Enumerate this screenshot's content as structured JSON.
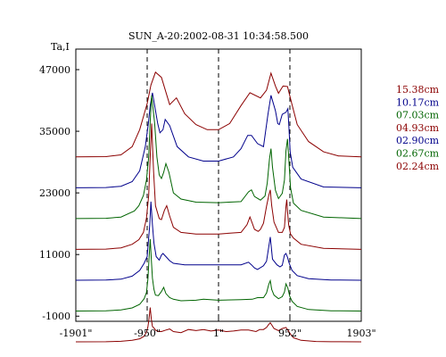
{
  "chart_data": {
    "type": "line",
    "title": "SUN_A-20:2002-08-31 10:34:58.500",
    "ylabel": "Ta,I",
    "xlabel": "",
    "x_ticks": [
      "-1901\"",
      "-950\"",
      "1\"",
      "952\"",
      "1903\""
    ],
    "x_tick_values": [
      -1901,
      -950,
      1,
      952,
      1903
    ],
    "xlim": [
      -1901,
      1903
    ],
    "y_ticks": [
      "47000",
      "35000",
      "23000",
      "11000",
      "-1000"
    ],
    "y_tick_values": [
      47000,
      35000,
      23000,
      11000,
      -1000
    ],
    "ylim": [
      -2000,
      51000
    ],
    "dashed_vlines": [
      -950,
      1,
      952
    ],
    "grid": false,
    "legend_position": "right",
    "series": [
      {
        "name": "15.38cm",
        "color": "#8B0000",
        "offset": 30000,
        "x": [
          -1901,
          -1500,
          -1300,
          -1150,
          -1050,
          -950,
          -900,
          -840,
          -760,
          -650,
          -560,
          -450,
          -300,
          -150,
          1,
          150,
          300,
          420,
          560,
          640,
          700,
          760,
          800,
          860,
          920,
          980,
          1050,
          1200,
          1400,
          1600,
          1903
        ],
        "y": [
          0,
          60,
          400,
          2000,
          5300,
          10400,
          14000,
          16500,
          15500,
          10200,
          11500,
          8400,
          6300,
          5300,
          5300,
          6500,
          10000,
          12500,
          11500,
          13000,
          16300,
          13800,
          12400,
          13800,
          13700,
          10200,
          6300,
          3000,
          1000,
          200,
          0
        ]
      },
      {
        "name": "10.17cm",
        "color": "#00008B",
        "offset": 24000,
        "x": [
          -1901,
          -1500,
          -1300,
          -1150,
          -1050,
          -975,
          -935,
          -910,
          -880,
          -810,
          -780,
          -740,
          -710,
          -650,
          -550,
          -400,
          -200,
          1,
          200,
          300,
          390,
          440,
          520,
          600,
          660,
          700,
          760,
          790,
          810,
          850,
          900,
          925,
          940,
          955,
          990,
          1100,
          1400,
          1903
        ],
        "y": [
          0,
          50,
          300,
          1200,
          3300,
          8000,
          12500,
          16000,
          18500,
          12500,
          10700,
          11300,
          13300,
          12100,
          8000,
          6000,
          5200,
          5200,
          6000,
          7600,
          10200,
          10200,
          8600,
          8000,
          14300,
          18000,
          15000,
          12500,
          12300,
          14300,
          14700,
          15400,
          11500,
          7000,
          4000,
          1700,
          150,
          0
        ]
      },
      {
        "name": "07.03cm",
        "color": "#006400",
        "offset": 18000,
        "x": [
          -1901,
          -1500,
          -1300,
          -1120,
          -1060,
          -1000,
          -960,
          -930,
          -910,
          -890,
          -850,
          -820,
          -790,
          -760,
          -730,
          -700,
          -660,
          -600,
          -500,
          -300,
          1,
          300,
          400,
          440,
          480,
          560,
          620,
          650,
          680,
          700,
          720,
          760,
          800,
          850,
          880,
          900,
          920,
          940,
          960,
          1000,
          1100,
          1400,
          1903
        ],
        "y": [
          0,
          50,
          300,
          1500,
          2500,
          4500,
          7500,
          12000,
          19000,
          24000,
          18500,
          12000,
          8500,
          7800,
          9000,
          10700,
          9000,
          5000,
          3800,
          3200,
          3100,
          3300,
          5200,
          5600,
          4300,
          3600,
          4400,
          6900,
          11600,
          13600,
          10000,
          5500,
          3900,
          4900,
          7500,
          13200,
          15500,
          11000,
          6000,
          3000,
          1600,
          300,
          0
        ]
      },
      {
        "name": "04.93cm",
        "color": "#8B0000",
        "offset": 12000,
        "x": [
          -1901,
          -1500,
          -1300,
          -1150,
          -1060,
          -1000,
          -960,
          -930,
          -910,
          -890,
          -865,
          -840,
          -790,
          -760,
          -720,
          -690,
          -650,
          -600,
          -500,
          -300,
          1,
          300,
          380,
          420,
          450,
          480,
          530,
          560,
          600,
          640,
          670,
          690,
          710,
          740,
          800,
          850,
          880,
          900,
          910,
          920,
          935,
          960,
          1000,
          1100,
          1400,
          1903
        ],
        "y": [
          0,
          50,
          300,
          1000,
          1900,
          3300,
          6100,
          10500,
          18100,
          24500,
          15100,
          8500,
          6000,
          5800,
          7600,
          8500,
          6500,
          4300,
          3300,
          3000,
          3000,
          3300,
          4800,
          6300,
          5100,
          3900,
          3500,
          3900,
          5100,
          8400,
          10500,
          11600,
          8500,
          5300,
          3300,
          3300,
          4300,
          8400,
          9700,
          7500,
          4800,
          3000,
          2200,
          1000,
          200,
          0
        ]
      },
      {
        "name": "02.90cm",
        "color": "#00008B",
        "offset": 6000,
        "x": [
          -1901,
          -1500,
          -1300,
          -1150,
          -1050,
          -990,
          -950,
          -930,
          -915,
          -900,
          -880,
          -860,
          -830,
          -790,
          -760,
          -740,
          -700,
          -650,
          -600,
          -450,
          -200,
          1,
          300,
          400,
          440,
          480,
          520,
          600,
          640,
          670,
          690,
          720,
          780,
          820,
          850,
          880,
          900,
          920,
          940,
          980,
          1050,
          1200,
          1500,
          1903
        ],
        "y": [
          0,
          30,
          200,
          800,
          1900,
          3300,
          4600,
          8300,
          10800,
          15300,
          10800,
          7200,
          4600,
          3900,
          4900,
          5200,
          4600,
          3800,
          3300,
          3000,
          3000,
          3000,
          3000,
          3500,
          3000,
          2400,
          2100,
          2800,
          3700,
          6500,
          8400,
          4100,
          3000,
          2600,
          2900,
          4900,
          5200,
          4500,
          3400,
          1900,
          900,
          300,
          50,
          0
        ]
      },
      {
        "name": "02.67cm",
        "color": "#006400",
        "offset": 0,
        "x": [
          -1901,
          -1500,
          -1300,
          -1150,
          -1050,
          -990,
          -960,
          -940,
          -925,
          -910,
          -895,
          -880,
          -860,
          -840,
          -800,
          -760,
          -730,
          -700,
          -650,
          -600,
          -500,
          -300,
          -200,
          1,
          300,
          450,
          520,
          600,
          640,
          670,
          690,
          710,
          740,
          800,
          850,
          880,
          900,
          925,
          950,
          980,
          1050,
          1200,
          1500,
          1903
        ],
        "y": [
          0,
          30,
          200,
          600,
          1300,
          2400,
          3600,
          6200,
          10200,
          14000,
          10200,
          6400,
          4200,
          3100,
          3000,
          3800,
          4600,
          3400,
          2600,
          2300,
          2000,
          2100,
          2300,
          2100,
          2200,
          2300,
          2600,
          2600,
          3500,
          5200,
          5900,
          4200,
          3100,
          2400,
          2800,
          3700,
          5300,
          4500,
          2900,
          1900,
          900,
          300,
          50,
          0
        ]
      },
      {
        "name": "02.24cm",
        "color": "#8B0000",
        "offset": -6000,
        "x": [
          -1901,
          -1500,
          -1300,
          -1150,
          -1050,
          -990,
          -960,
          -940,
          -925,
          -910,
          -895,
          -880,
          -860,
          -840,
          -800,
          -760,
          -700,
          -650,
          -600,
          -500,
          -400,
          -300,
          -200,
          -100,
          1,
          100,
          200,
          300,
          400,
          500,
          550,
          600,
          640,
          670,
          690,
          710,
          740,
          800,
          850,
          900,
          925,
          960,
          1000,
          1100,
          1300,
          1500,
          1903
        ],
        "y": [
          0,
          20,
          100,
          300,
          600,
          1100,
          1900,
          2900,
          4500,
          6700,
          4500,
          3000,
          2700,
          2300,
          2000,
          2000,
          2300,
          2500,
          2000,
          1800,
          2400,
          2200,
          2400,
          2100,
          2300,
          2000,
          2100,
          2300,
          2300,
          2000,
          2400,
          2400,
          2800,
          3400,
          3700,
          3300,
          2600,
          2200,
          2600,
          2800,
          2300,
          1500,
          800,
          300,
          80,
          20,
          0
        ]
      }
    ]
  }
}
